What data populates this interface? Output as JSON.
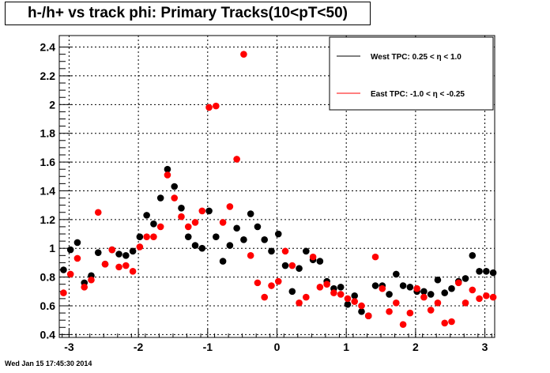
{
  "chart_data": {
    "type": "scatter",
    "title": "h-/h+ vs track phi: Primary Tracks(10<pT<50)",
    "xlim": [
      -3.1416,
      3.1416
    ],
    "ylim": [
      0.38,
      2.48
    ],
    "x_ticks": [
      -3,
      -2,
      -1,
      0,
      1,
      2,
      3
    ],
    "y_ticks": [
      0.4,
      0.6,
      0.8,
      1,
      1.2,
      1.4,
      1.6,
      1.8,
      2,
      2.2,
      2.4
    ],
    "legend_position": "top-right",
    "series": [
      {
        "name": "West TPC: 0.25 <    η < 1.0",
        "color": "#000000",
        "x": [
          -3.08,
          -2.98,
          -2.88,
          -2.78,
          -2.68,
          -2.58,
          -2.48,
          -2.38,
          -2.28,
          -2.18,
          -2.08,
          -1.98,
          -1.88,
          -1.78,
          -1.68,
          -1.58,
          -1.48,
          -1.38,
          -1.28,
          -1.18,
          -1.08,
          -0.98,
          -0.88,
          -0.78,
          -0.68,
          -0.58,
          -0.48,
          -0.38,
          -0.28,
          -0.18,
          -0.08,
          0.02,
          0.12,
          0.22,
          0.32,
          0.42,
          0.52,
          0.62,
          0.72,
          0.82,
          0.92,
          1.02,
          1.12,
          1.22,
          1.32,
          1.42,
          1.52,
          1.62,
          1.72,
          1.82,
          1.92,
          2.02,
          2.12,
          2.22,
          2.32,
          2.42,
          2.52,
          2.62,
          2.72,
          2.82,
          2.92,
          3.02,
          3.12
        ],
        "y": [
          0.85,
          0.99,
          1.04,
          0.76,
          0.81,
          0.97,
          0.89,
          0.99,
          0.96,
          0.95,
          0.98,
          1.08,
          1.23,
          1.17,
          1.35,
          1.55,
          1.43,
          1.28,
          1.08,
          1.02,
          1.0,
          1.26,
          1.08,
          0.91,
          1.02,
          1.14,
          1.06,
          1.24,
          1.15,
          1.06,
          0.98,
          1.1,
          0.88,
          0.7,
          0.86,
          0.98,
          0.92,
          0.91,
          0.77,
          0.72,
          0.73,
          0.61,
          0.67,
          0.56,
          0.53,
          0.74,
          0.74,
          0.68,
          0.82,
          0.74,
          0.73,
          0.7,
          0.7,
          0.68,
          0.78,
          0.69,
          0.72,
          0.77,
          0.79,
          0.95,
          0.84,
          0.84,
          0.83
        ]
      },
      {
        "name": "East TPC: -1.0 <    η < -0.25",
        "color": "#ff0000",
        "x": [
          -3.08,
          -2.98,
          -2.88,
          -2.78,
          -2.68,
          -2.58,
          -2.48,
          -2.38,
          -2.28,
          -2.18,
          -2.08,
          -1.98,
          -1.88,
          -1.78,
          -1.68,
          -1.58,
          -1.48,
          -1.38,
          -1.28,
          -1.18,
          -1.08,
          -0.98,
          -0.88,
          -0.78,
          -0.68,
          -0.58,
          -0.48,
          -0.38,
          -0.28,
          -0.18,
          -0.08,
          0.02,
          0.12,
          0.22,
          0.32,
          0.42,
          0.52,
          0.62,
          0.72,
          0.82,
          0.92,
          1.02,
          1.12,
          1.22,
          1.32,
          1.42,
          1.52,
          1.62,
          1.72,
          1.82,
          1.92,
          2.02,
          2.12,
          2.22,
          2.32,
          2.42,
          2.52,
          2.62,
          2.72,
          2.82,
          2.92,
          3.02,
          3.12
        ],
        "y": [
          0.69,
          0.82,
          0.93,
          0.73,
          0.78,
          1.25,
          0.89,
          0.99,
          0.87,
          0.88,
          0.84,
          1.01,
          1.08,
          1.08,
          1.15,
          1.51,
          1.35,
          1.22,
          1.15,
          1.18,
          1.26,
          1.98,
          1.99,
          1.18,
          1.29,
          1.62,
          2.35,
          0.95,
          0.76,
          0.66,
          0.74,
          0.77,
          0.98,
          0.88,
          0.62,
          0.66,
          0.94,
          0.73,
          0.75,
          0.69,
          0.68,
          0.65,
          0.63,
          0.6,
          0.53,
          0.94,
          0.72,
          0.56,
          0.62,
          0.47,
          0.55,
          0.72,
          0.66,
          0.57,
          0.62,
          0.48,
          0.49,
          0.76,
          0.62,
          0.71,
          0.65,
          0.67,
          0.66
        ]
      }
    ]
  },
  "footer": {
    "timestamp": "Wed Jan 15 17:45:30 2014"
  }
}
